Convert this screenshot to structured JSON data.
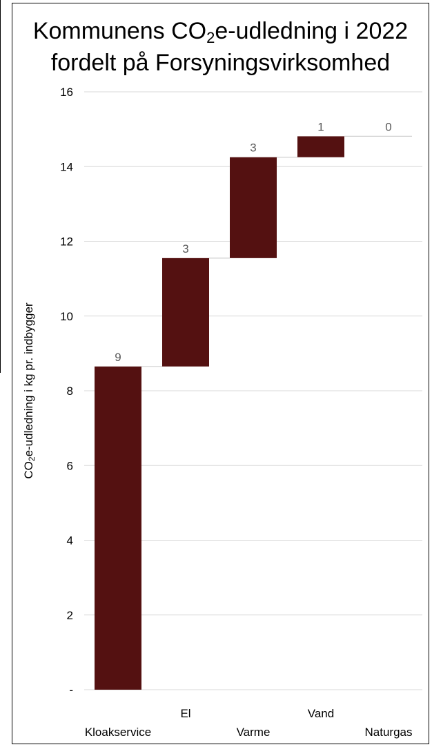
{
  "chart_data": {
    "type": "bar",
    "subtype": "waterfall",
    "title": {
      "line1_pre": "Kommunens CO",
      "line1_sub": "2",
      "line1_post": "e-udledning i 2022",
      "line2": "fordelt på Forsyningsvirksomhed"
    },
    "ylabel": {
      "pre": "CO",
      "sub": "2",
      "post": "e-udledning i kg pr. indbygger"
    },
    "xlabel": "",
    "ylim": [
      0,
      16
    ],
    "yticks": [
      0,
      2,
      4,
      6,
      8,
      10,
      12,
      14,
      16
    ],
    "ytick_labels": [
      "-",
      "2",
      "4",
      "6",
      "8",
      "10",
      "12",
      "14",
      "16"
    ],
    "categories": [
      "Kloakservice",
      "El",
      "Varme",
      "Vand",
      "Naturgas"
    ],
    "values": [
      8.65,
      2.9,
      2.7,
      0.56,
      0.0
    ],
    "data_labels": [
      "9",
      "3",
      "3",
      "1",
      "0"
    ],
    "grid": true,
    "bar_color": "#541111",
    "connector_color": "#d0d0d0",
    "grid_color": "#d9d9d9"
  }
}
